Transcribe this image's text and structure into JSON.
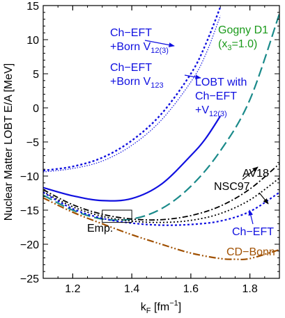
{
  "chart_data": {
    "type": "line",
    "xlabel": {
      "main": "k",
      "sub": "F",
      "rest": " [fm",
      "sup": "−1",
      "close": "]"
    },
    "ylabel": "Nuclear Matter LOBT E/A  [MeV]",
    "xlim": [
      1.1,
      1.9
    ],
    "ylim": [
      -25,
      15
    ],
    "xticks": [
      1.2,
      1.4,
      1.6,
      1.8
    ],
    "yticks": [
      -25,
      -20,
      -15,
      -10,
      -5,
      0,
      5,
      10,
      15
    ],
    "grid": false,
    "series": [
      {
        "key": "chborn3",
        "color": "#1010e0",
        "dash": "3,3",
        "width": 2.4,
        "x": [
          1.1,
          1.2,
          1.3,
          1.4,
          1.5,
          1.6,
          1.65,
          1.7
        ],
        "y": [
          -9.2,
          -8.6,
          -7.3,
          -4.8,
          -0.9,
          5.0,
          9.3,
          14.8
        ]
      },
      {
        "key": "chborn123",
        "color": "#1010e0",
        "dash": "1.5,2",
        "width": 1.2,
        "x": [
          1.1,
          1.2,
          1.3,
          1.4,
          1.5,
          1.6,
          1.65,
          1.7
        ],
        "y": [
          -9.4,
          -8.9,
          -7.8,
          -5.5,
          -1.8,
          3.8,
          7.8,
          13.5
        ]
      },
      {
        "key": "lobt",
        "color": "#1010e0",
        "dash": "",
        "width": 2.2,
        "x": [
          1.1,
          1.2,
          1.3,
          1.4,
          1.5,
          1.6,
          1.65,
          1.7
        ],
        "y": [
          -11.7,
          -12.9,
          -13.6,
          -13.3,
          -11.2,
          -7.0,
          -4.5,
          -1.2
        ]
      },
      {
        "key": "gogny",
        "color": "#1a8a8a",
        "dash": "14,6",
        "width": 2.2,
        "x": [
          1.1,
          1.2,
          1.3,
          1.4,
          1.5,
          1.6,
          1.7,
          1.8,
          1.9
        ],
        "y": [
          -12.8,
          -15.0,
          -16.3,
          -16.3,
          -14.8,
          -11.5,
          -6.3,
          1.2,
          13.8
        ]
      },
      {
        "key": "av18",
        "color": "#000000",
        "dash": "8,3,2,3",
        "width": 1.8,
        "x": [
          1.1,
          1.2,
          1.3,
          1.4,
          1.5,
          1.6,
          1.7,
          1.8,
          1.9
        ],
        "y": [
          -12.0,
          -14.2,
          -15.6,
          -16.3,
          -16.4,
          -15.8,
          -14.4,
          -11.9,
          -8.2
        ]
      },
      {
        "key": "nsc97",
        "color": "#000000",
        "dash": "2,3",
        "width": 1.8,
        "x": [
          1.1,
          1.2,
          1.3,
          1.4,
          1.5,
          1.6,
          1.7,
          1.8,
          1.9
        ],
        "y": [
          -12.3,
          -14.5,
          -15.9,
          -16.6,
          -16.8,
          -16.5,
          -15.5,
          -13.5,
          -10.3
        ]
      },
      {
        "key": "chEFT",
        "color": "#1010e0",
        "dash": "3,3",
        "width": 2.2,
        "x": [
          1.1,
          1.2,
          1.3,
          1.4,
          1.5,
          1.6,
          1.7,
          1.8,
          1.9
        ],
        "y": [
          -12.4,
          -14.8,
          -16.2,
          -16.9,
          -17.2,
          -17.1,
          -16.6,
          -15.2,
          -12.4
        ]
      },
      {
        "key": "cdbonn",
        "color": "#a05000",
        "dash": "10,3,2,3,2,3",
        "width": 2.2,
        "x": [
          1.1,
          1.2,
          1.3,
          1.4,
          1.5,
          1.6,
          1.7,
          1.75,
          1.8,
          1.9
        ],
        "y": [
          -13.2,
          -15.3,
          -17.0,
          -18.6,
          -20.0,
          -21.3,
          -22.1,
          -22.2,
          -22.1,
          -20.8
        ]
      }
    ],
    "labels": [
      {
        "key": "chborn3_l1",
        "text": "Ch−EFT",
        "color": "#1010e0"
      },
      {
        "key": "chborn3_l2",
        "text": "+Born V",
        "sub": "12(3)",
        "color": "#1010e0"
      },
      {
        "key": "chborn123_l1",
        "text": "Ch−EFT",
        "color": "#1010e0"
      },
      {
        "key": "chborn123_l2",
        "text": "+Born V",
        "sub": "123",
        "color": "#1010e0"
      },
      {
        "key": "lobt_l1",
        "text": "LOBT with",
        "color": "#1010e0"
      },
      {
        "key": "lobt_l2",
        "text": "Ch−EFT",
        "color": "#1010e0"
      },
      {
        "key": "lobt_l3",
        "text": "+V",
        "sub": "12(3)",
        "color": "#1010e0"
      },
      {
        "key": "gogny_l1",
        "text": "Gogny D1",
        "color": "#1a9a1a"
      },
      {
        "key": "gogny_l2",
        "text": "(x",
        "sub": "3",
        "post": "=1.0)",
        "color": "#1a9a1a"
      },
      {
        "key": "av18_l",
        "text": "AV18",
        "color": "#000000"
      },
      {
        "key": "nsc97_l",
        "text": "NSC97",
        "color": "#000000"
      },
      {
        "key": "chEFT_l",
        "text": "Ch−EFT",
        "color": "#1010e0"
      },
      {
        "key": "cdbonn_l",
        "text": "CD−Bonn",
        "color": "#a05000"
      },
      {
        "key": "emp_l",
        "text": "Emp.",
        "color": "#000000"
      }
    ],
    "empirical_box": {
      "x": [
        1.3,
        1.4
      ],
      "y": [
        -16.8,
        -15.0
      ]
    }
  }
}
